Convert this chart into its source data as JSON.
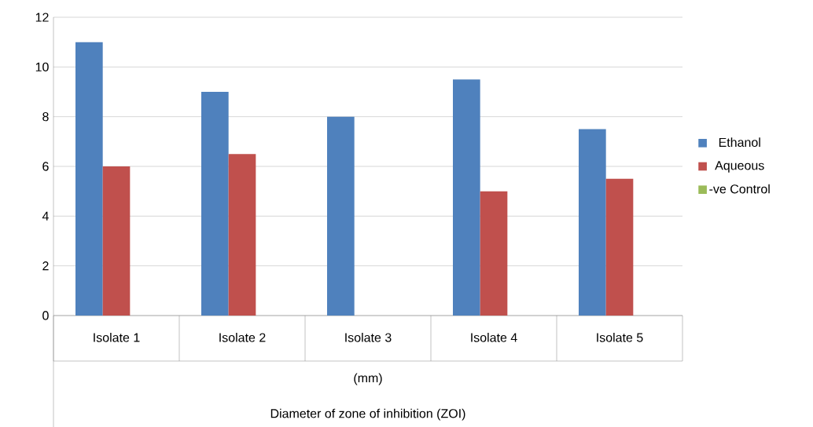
{
  "chart_data": {
    "type": "bar",
    "annotations": [
      "(mm)",
      "Diameter of zone of inhibition (ZOI)"
    ],
    "categories": [
      "Isolate 1",
      "Isolate 2",
      "Isolate 3",
      "Isolate 4",
      "Isolate 5"
    ],
    "series": [
      {
        "name": "Ethanol",
        "color": "#4f81bd",
        "values": [
          11,
          9,
          8,
          9.5,
          7.5
        ]
      },
      {
        "name": "Aqueous",
        "color": "#c0504d",
        "values": [
          6,
          6.5,
          0,
          5,
          5.5
        ]
      },
      {
        "name": "-ve Control",
        "color": "#9bbb59",
        "values": [
          0,
          0,
          0,
          0,
          0
        ]
      }
    ],
    "ylim": [
      0,
      12
    ],
    "yticks": [
      0,
      2,
      4,
      6,
      8,
      10,
      12
    ],
    "grid": "y",
    "legend": "right"
  }
}
